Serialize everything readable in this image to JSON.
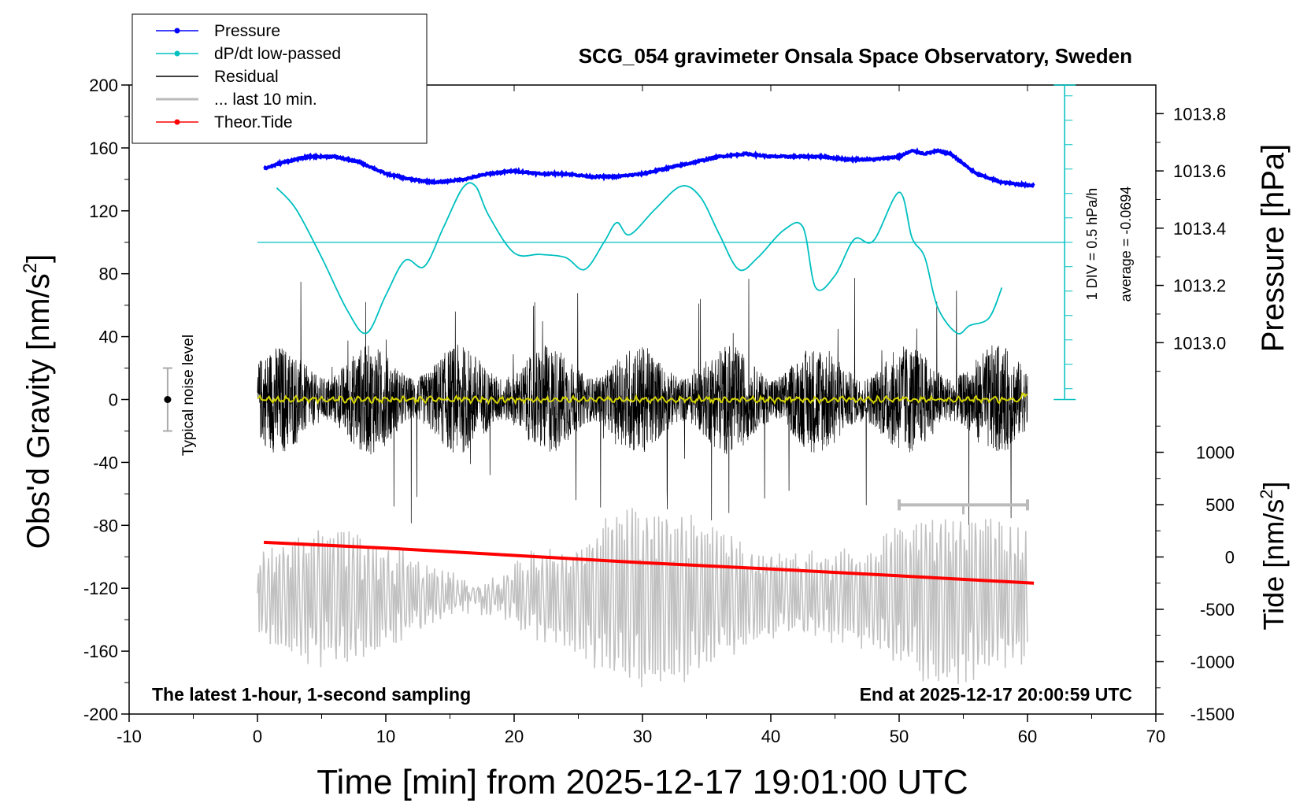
{
  "chart_data": {
    "type": "line",
    "title": "SCG_054 gravimeter Onsala Space Observatory, Sweden",
    "xlabel": "Time [min] from 2025-12-17 19:01:00 UTC",
    "ylabel": "Obs'd Gravity [nm/s",
    "ylabel_sup": "2",
    "ylabel_close": "]",
    "y2label": "Pressure [hPa]",
    "y3label": "Tide [nm/s",
    "y3label_sup": "2",
    "y3label_close": "]",
    "xlim": [
      -10,
      70
    ],
    "ylim": [
      -200,
      200
    ],
    "pressure_lim": [
      1012.8,
      1013.9
    ],
    "tide_lim": [
      -1500,
      1500
    ],
    "x_ticks": [
      "-10",
      "0",
      "10",
      "20",
      "30",
      "40",
      "50",
      "60",
      "70"
    ],
    "y_ticks": [
      "200",
      "160",
      "120",
      "80",
      "40",
      "0",
      "-40",
      "-80",
      "-120",
      "-160",
      "-200"
    ],
    "pressure_ticks": [
      "1013.8",
      "1013.6",
      "1013.4",
      "1013.2",
      "1013.0"
    ],
    "tide_ticks": [
      "1000",
      "500",
      "0",
      "-500",
      "-1000",
      "-1500"
    ],
    "legend": [
      {
        "label": "Pressure",
        "color": "#0000ff",
        "marker": true
      },
      {
        "label": "dP/dt low-passed",
        "color": "#00c0c0",
        "marker": true
      },
      {
        "label": "Residual",
        "color": "#000000",
        "marker": false
      },
      {
        "label": "... last 10 min.",
        "color": "#bbbbbb",
        "marker": false
      },
      {
        "label": "Theor.Tide",
        "color": "#ff0000",
        "marker": true
      }
    ],
    "pressure_series": {
      "name": "Pressure",
      "x": [
        0,
        2,
        4,
        6,
        8,
        10,
        12,
        14,
        16,
        18,
        20,
        22,
        24,
        26,
        28,
        30,
        32,
        34,
        36,
        38,
        40,
        42,
        44,
        46,
        48,
        50,
        51,
        52,
        53,
        54,
        56,
        58,
        60
      ],
      "values": [
        1013.6,
        1013.63,
        1013.65,
        1013.65,
        1013.63,
        1013.59,
        1013.57,
        1013.56,
        1013.57,
        1013.59,
        1013.6,
        1013.59,
        1013.59,
        1013.58,
        1013.58,
        1013.59,
        1013.61,
        1013.63,
        1013.65,
        1013.66,
        1013.65,
        1013.65,
        1013.65,
        1013.64,
        1013.64,
        1013.65,
        1013.67,
        1013.66,
        1013.67,
        1013.66,
        1013.59,
        1013.56,
        1013.55
      ]
    },
    "dpdt_series": {
      "name": "dP/dt low-passed",
      "x": [
        1.5,
        3,
        5,
        7,
        8.5,
        10,
        11.5,
        13,
        14.5,
        16,
        17,
        18,
        20,
        22,
        24,
        25.5,
        27,
        28,
        29,
        31,
        33,
        34.5,
        36,
        37.5,
        39,
        41,
        42.5,
        43.5,
        45,
        46.5,
        48,
        50,
        51,
        52,
        53,
        54.5,
        55.5,
        57,
        58
      ],
      "values": [
        0.36,
        0.22,
        -0.1,
        -0.45,
        -0.6,
        -0.35,
        -0.12,
        -0.16,
        0.1,
        0.36,
        0.37,
        0.18,
        -0.07,
        -0.08,
        -0.1,
        -0.18,
        0.0,
        0.13,
        0.05,
        0.22,
        0.37,
        0.3,
        0.05,
        -0.18,
        -0.1,
        0.08,
        0.1,
        -0.3,
        -0.22,
        0.02,
        0.01,
        0.33,
        0.03,
        -0.1,
        -0.43,
        -0.6,
        -0.55,
        -0.5,
        -0.3
      ]
    },
    "dpdt_average_label": "average = -0.0694",
    "dpdt_scale_label": "1 DIV = 0.5 hPa/h",
    "tide_series": {
      "name": "Theor.Tide",
      "x": [
        0.5,
        10,
        20,
        30,
        40,
        50,
        60.5
      ],
      "values": [
        140,
        85,
        15,
        -55,
        -115,
        -180,
        -250
      ]
    },
    "residual_envelope": {
      "name": "Residual",
      "x_range": [
        0,
        60
      ],
      "typical_amplitude": 35,
      "peak_amplitude": 80
    },
    "last10_series": {
      "name": "... last 10 min.",
      "x_range": [
        0,
        60
      ],
      "center": -125,
      "typical_amplitude": 40,
      "peak_amplitude": 75
    },
    "noise_level": {
      "label": "Typical noise level",
      "x": -7,
      "center": 0,
      "half_range": 20
    },
    "last10_bracket": {
      "x_start": 50,
      "x_end": 60,
      "y": -67
    },
    "caption_left": "The latest 1-hour, 1-second sampling",
    "caption_right": "End at 2025-12-17 20:00:59 UTC"
  }
}
